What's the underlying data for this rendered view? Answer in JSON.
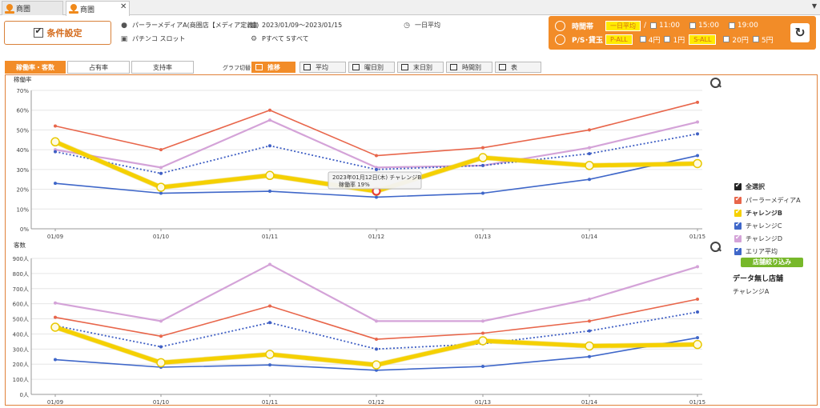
{
  "tabs": [
    {
      "label": "商圏",
      "active": false
    },
    {
      "label": "商圏",
      "active": true
    }
  ],
  "condition": {
    "button_label": "条件設定",
    "store": "パーラーメディアA(商圏店【メディア定義】)",
    "category": "パチンコ スロット",
    "period": "2023/01/09～2023/01/15",
    "machines": "Pすべて Sすべて",
    "time_mode": "一日平均"
  },
  "settings_panel": {
    "time_label": "時間帯",
    "time_active": "一日平均",
    "time_sep": "/",
    "times": [
      "11:00",
      "15:00",
      "19:00"
    ],
    "ps_label": "P/S･貸玉",
    "p_all": "P-ALL",
    "p_rates": [
      "4円",
      "1円"
    ],
    "s_all": "S-ALL",
    "s_rates": [
      "20円",
      "5円"
    ]
  },
  "view_tabs": [
    "稼働率・客数",
    "占有率",
    "支持率"
  ],
  "graph_switch_label": "グラフ切替",
  "graph_modes": [
    "推移",
    "平均",
    "曜日別",
    "末日別",
    "時間別",
    "表"
  ],
  "legend": {
    "select_all": "全選択",
    "items": [
      {
        "name": "パーラーメディアA",
        "color": "#e8664b",
        "bold": false
      },
      {
        "name": "チャレンジB",
        "color": "#f5d000",
        "bold": true
      },
      {
        "name": "チャレンジC",
        "color": "#3f67c9",
        "bold": false
      },
      {
        "name": "チャレンジD",
        "color": "#d4a3d8",
        "bold": false
      },
      {
        "name": "エリア平均",
        "color": "#3f67c9",
        "bold": false
      }
    ],
    "narrow_button": "店舗絞り込み",
    "nodata_title": "データ無し店舗",
    "nodata_items": [
      "チャレンジA"
    ]
  },
  "chart_data": [
    {
      "type": "line",
      "title": "稼働率",
      "categories": [
        "01/09",
        "01/10",
        "01/11",
        "01/12",
        "01/13",
        "01/14",
        "01/15"
      ],
      "ylim": [
        0,
        70
      ],
      "yticks": [
        "0%",
        "10%",
        "20%",
        "30%",
        "40%",
        "50%",
        "60%",
        "70%"
      ],
      "series": [
        {
          "name": "パーラーメディアA",
          "values": [
            52,
            40,
            60,
            37,
            41,
            50,
            64
          ]
        },
        {
          "name": "チャレンジD",
          "values": [
            40,
            31,
            55,
            31,
            32,
            41,
            54
          ]
        },
        {
          "name": "エリア平均",
          "values": [
            39,
            28,
            42,
            30,
            32,
            38,
            48
          ]
        },
        {
          "name": "チャレンジC",
          "values": [
            23,
            18,
            19,
            16,
            18,
            25,
            37
          ]
        },
        {
          "name": "チャレンジB",
          "values": [
            44,
            21,
            27,
            19,
            36,
            32,
            33
          ]
        }
      ],
      "tooltip": {
        "title": "2023年01月12日(木) チャレンジB",
        "value": "稼働率 19%"
      }
    },
    {
      "type": "line",
      "title": "客数",
      "categories": [
        "01/09",
        "01/10",
        "01/11",
        "01/12",
        "01/13",
        "01/14",
        "01/15"
      ],
      "ylim": [
        0,
        900
      ],
      "yticks": [
        "0人",
        "100人",
        "200人",
        "300人",
        "400人",
        "500人",
        "600人",
        "700人",
        "800人",
        "900人"
      ],
      "series": [
        {
          "name": "パーラーメディアA",
          "values": [
            510,
            385,
            585,
            365,
            405,
            485,
            630
          ]
        },
        {
          "name": "チャレンジD",
          "values": [
            605,
            485,
            860,
            485,
            485,
            630,
            845
          ]
        },
        {
          "name": "エリア平均",
          "values": [
            455,
            315,
            475,
            300,
            335,
            420,
            545
          ]
        },
        {
          "name": "チャレンジC",
          "values": [
            230,
            180,
            195,
            160,
            185,
            250,
            375
          ]
        },
        {
          "name": "チャレンジB",
          "values": [
            445,
            210,
            265,
            195,
            355,
            320,
            330
          ]
        }
      ]
    }
  ]
}
